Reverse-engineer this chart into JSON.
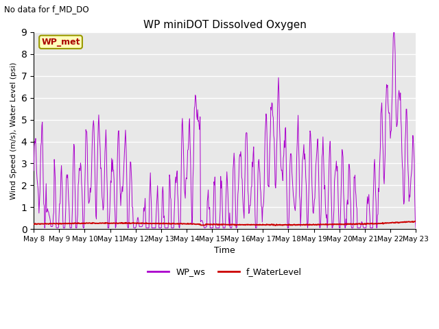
{
  "title": "WP miniDOT Dissolved Oxygen",
  "top_left_text": "No data for f_MD_DO",
  "ylabel": "Wind Speed (m/s), Water Level (psi)",
  "xlabel": "Time",
  "legend_label1": "WP_ws",
  "legend_label2": "f_WaterLevel",
  "inset_label": "WP_met",
  "ylim": [
    0.0,
    9.0
  ],
  "yticks": [
    0.0,
    1.0,
    2.0,
    3.0,
    4.0,
    5.0,
    6.0,
    7.0,
    8.0,
    9.0
  ],
  "color_ws": "#aa00cc",
  "color_wl": "#cc0000",
  "bg_color": "#e8e8e8",
  "xtick_labels": [
    "May 8",
    "May 9",
    "May 10",
    "May 11",
    "May 12",
    "May 13",
    "May 14",
    "May 15",
    "May 16",
    "May 17",
    "May 18",
    "May 19",
    "May 20",
    "May 21",
    "May 22",
    "May 23"
  ]
}
